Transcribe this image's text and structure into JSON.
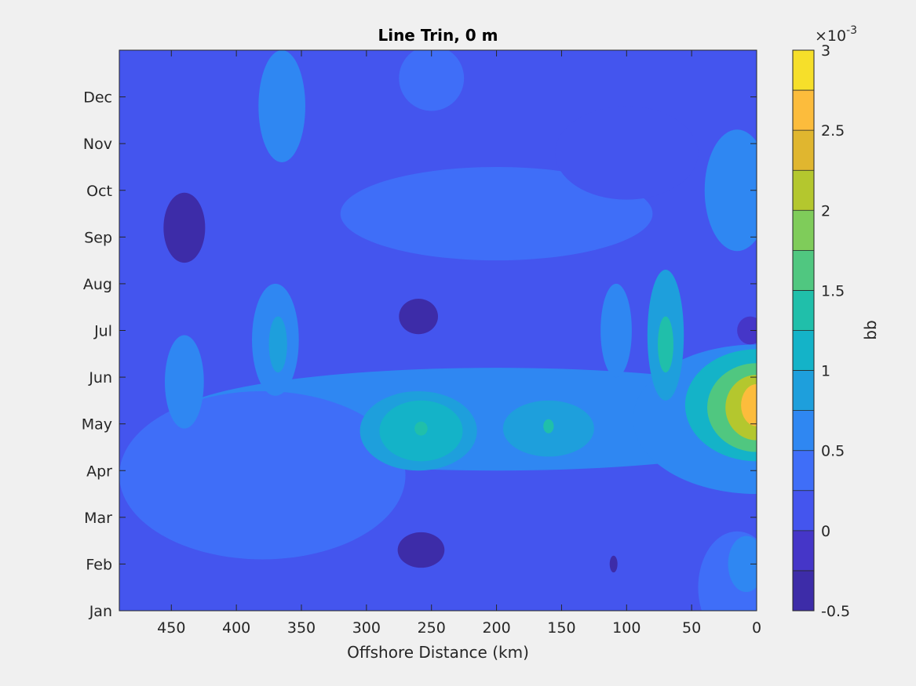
{
  "chart_data": {
    "type": "heatmap",
    "subtype": "filled-contour",
    "title": "Line Trin, 0 m",
    "xlabel": "Offshore Distance (km)",
    "ylabel": "",
    "x_reversed": true,
    "xlim": [
      0,
      490
    ],
    "ylim": [
      1,
      13
    ],
    "x_ticks": [
      450,
      400,
      350,
      300,
      250,
      200,
      150,
      100,
      50,
      0
    ],
    "x_tick_labels": [
      "450",
      "400",
      "350",
      "300",
      "250",
      "200",
      "150",
      "100",
      "50",
      "0"
    ],
    "y_ticks": [
      1,
      2,
      3,
      4,
      5,
      6,
      7,
      8,
      9,
      10,
      11,
      12
    ],
    "y_tick_labels": [
      "Jan",
      "Feb",
      "Mar",
      "Apr",
      "May",
      "Jun",
      "Jul",
      "Aug",
      "Sep",
      "Oct",
      "Nov",
      "Dec"
    ],
    "colorbar": {
      "label": "bb",
      "multiplier": "×10",
      "exponent": "-3",
      "clim": [
        -0.5,
        3
      ],
      "ticks": [
        -0.5,
        0,
        0.5,
        1,
        1.5,
        2,
        2.5,
        3
      ],
      "tick_labels": [
        "-0.5",
        "0",
        "0.5",
        "1",
        "1.5",
        "2",
        "2.5",
        "3"
      ],
      "levels": [
        -0.5,
        -0.25,
        0,
        0.25,
        0.5,
        0.75,
        1,
        1.25,
        1.5,
        1.75,
        2,
        2.25,
        2.5,
        2.75,
        3
      ],
      "colors": [
        "#3d2ca8",
        "#4536c8",
        "#4455ee",
        "#3f6ef8",
        "#2f87f2",
        "#1e9fdc",
        "#14b3c8",
        "#20bfaa",
        "#50c780",
        "#7fcc5a",
        "#b4c72e",
        "#e0b62f",
        "#fcbc3c",
        "#f6df2a"
      ]
    },
    "base_level": 0.1,
    "features": [
      {
        "x": 0,
        "y": 5.4,
        "rx": 55,
        "ry": 1.2,
        "value": 1.1
      },
      {
        "x": 0,
        "y": 5.35,
        "rx": 38,
        "ry": 0.95,
        "value": 1.6
      },
      {
        "x": 0,
        "y": 5.35,
        "rx": 24,
        "ry": 0.7,
        "value": 2.2
      },
      {
        "x": 0,
        "y": 5.4,
        "rx": 12,
        "ry": 0.45,
        "value": 2.7
      },
      {
        "x": 0,
        "y": 5.1,
        "rx": 95,
        "ry": 1.6,
        "value": 0.6
      },
      {
        "x": 260,
        "y": 4.85,
        "rx": 45,
        "ry": 0.85,
        "value": 0.8
      },
      {
        "x": 258,
        "y": 4.85,
        "rx": 32,
        "ry": 0.65,
        "value": 1.05
      },
      {
        "x": 258,
        "y": 4.9,
        "rx": 5,
        "ry": 0.15,
        "value": 1.3
      },
      {
        "x": 160,
        "y": 4.9,
        "rx": 35,
        "ry": 0.6,
        "value": 0.8
      },
      {
        "x": 160,
        "y": 4.95,
        "rx": 4,
        "ry": 0.15,
        "value": 1.3
      },
      {
        "x": 70,
        "y": 6.9,
        "rx": 14,
        "ry": 1.4,
        "value": 0.9
      },
      {
        "x": 70,
        "y": 6.7,
        "rx": 6,
        "ry": 0.6,
        "value": 1.3
      },
      {
        "x": 108,
        "y": 7.0,
        "rx": 12,
        "ry": 1.0,
        "value": 0.7
      },
      {
        "x": 370,
        "y": 6.8,
        "rx": 18,
        "ry": 1.2,
        "value": 0.6
      },
      {
        "x": 368,
        "y": 6.7,
        "rx": 7,
        "ry": 0.6,
        "value": 0.85
      },
      {
        "x": 440,
        "y": 5.9,
        "rx": 15,
        "ry": 1.0,
        "value": 0.6
      },
      {
        "x": 365,
        "y": 11.8,
        "rx": 18,
        "ry": 1.2,
        "value": 0.6
      },
      {
        "x": 250,
        "y": 12.4,
        "rx": 25,
        "ry": 0.7,
        "value": 0.4
      },
      {
        "x": 15,
        "y": 10.0,
        "rx": 25,
        "ry": 1.3,
        "value": 0.6
      },
      {
        "x": 15,
        "y": 1.5,
        "rx": 30,
        "ry": 1.2,
        "value": 0.45
      },
      {
        "x": 8,
        "y": 2.0,
        "rx": 14,
        "ry": 0.6,
        "value": 0.6
      },
      {
        "x": 440,
        "y": 9.2,
        "rx": 16,
        "ry": 0.75,
        "value": -0.4
      },
      {
        "x": 260,
        "y": 7.3,
        "rx": 15,
        "ry": 0.38,
        "value": -0.35
      },
      {
        "x": 258,
        "y": 2.3,
        "rx": 18,
        "ry": 0.38,
        "value": -0.35
      },
      {
        "x": 110,
        "y": 2.0,
        "rx": 3,
        "ry": 0.18,
        "value": -0.3
      },
      {
        "x": 5,
        "y": 7.0,
        "rx": 10,
        "ry": 0.3,
        "value": -0.25
      },
      {
        "x": 100,
        "y": 10.8,
        "rx": 55,
        "ry": 1.0,
        "value": 0.2
      },
      {
        "x": 200,
        "y": 9.5,
        "rx": 120,
        "ry": 1.0,
        "value": 0.35
      },
      {
        "x": 380,
        "y": 3.9,
        "rx": 110,
        "ry": 1.8,
        "value": 0.35
      },
      {
        "x": 200,
        "y": 5.1,
        "rx": 250,
        "ry": 1.1,
        "value": 0.55
      }
    ]
  }
}
